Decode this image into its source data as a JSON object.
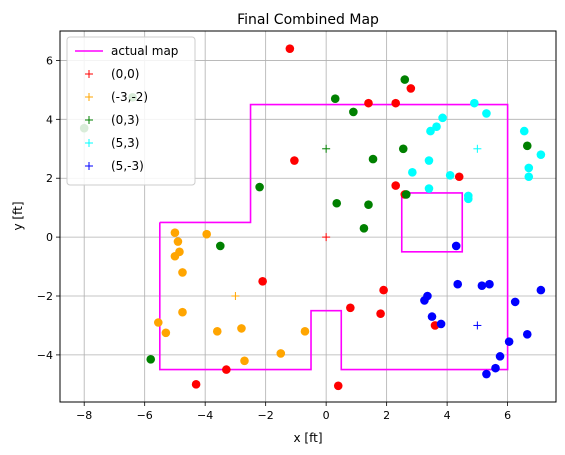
{
  "chart_data": {
    "type": "scatter",
    "title": "Final Combined Map",
    "xlabel": "x [ft]",
    "ylabel": "y [ft]",
    "xlim": [
      -8.8,
      7.6
    ],
    "ylim": [
      -5.6,
      7.0
    ],
    "xticks": [
      -8,
      -6,
      -4,
      -2,
      0,
      2,
      4,
      6
    ],
    "yticks": [
      -4,
      -2,
      0,
      2,
      4,
      6
    ],
    "grid": true,
    "legend_position": "top-left",
    "map": {
      "name": "actual map",
      "color": "#ff00ff",
      "outer": [
        [
          -5.5,
          0.5
        ],
        [
          -2.5,
          0.5
        ],
        [
          -2.5,
          4.5
        ],
        [
          6,
          4.5
        ],
        [
          6,
          -4.5
        ],
        [
          0.5,
          -4.5
        ],
        [
          0.5,
          -2.5
        ],
        [
          -0.5,
          -2.5
        ],
        [
          -0.5,
          -4.5
        ],
        [
          -5.5,
          -4.5
        ],
        [
          -5.5,
          0.5
        ]
      ],
      "inner": [
        [
          2.5,
          1.5
        ],
        [
          4.5,
          1.5
        ],
        [
          4.5,
          -0.5
        ],
        [
          2.5,
          -0.5
        ],
        [
          2.5,
          1.5
        ]
      ]
    },
    "series": [
      {
        "name": "(0,0)",
        "color": "#ff0000",
        "origin": [
          0,
          0
        ],
        "points": [
          [
            -1.2,
            6.4
          ],
          [
            1.4,
            4.55
          ],
          [
            2.3,
            4.55
          ],
          [
            2.8,
            5.05
          ],
          [
            -1.05,
            2.6
          ],
          [
            2.3,
            1.75
          ],
          [
            2.6,
            1.45
          ],
          [
            4.4,
            2.05
          ],
          [
            -2.1,
            -1.5
          ],
          [
            1.9,
            -1.8
          ],
          [
            0.8,
            -2.4
          ],
          [
            1.8,
            -2.6
          ],
          [
            3.6,
            -3.0
          ],
          [
            -3.3,
            -4.5
          ],
          [
            -4.3,
            -5.0
          ],
          [
            0.4,
            -5.05
          ]
        ]
      },
      {
        "name": "(-3,-2)",
        "color": "#ffa500",
        "origin": [
          -3,
          -2
        ],
        "points": [
          [
            -5.0,
            0.15
          ],
          [
            -3.95,
            0.1
          ],
          [
            -4.9,
            -0.15
          ],
          [
            -4.85,
            -0.5
          ],
          [
            -5.0,
            -0.65
          ],
          [
            -4.75,
            -1.2
          ],
          [
            -4.75,
            -2.55
          ],
          [
            -5.55,
            -2.9
          ],
          [
            -5.3,
            -3.25
          ],
          [
            -3.6,
            -3.2
          ],
          [
            -2.8,
            -3.1
          ],
          [
            -0.7,
            -3.2
          ],
          [
            -1.5,
            -3.95
          ],
          [
            -2.7,
            -4.2
          ]
        ]
      },
      {
        "name": "(0,3)",
        "color": "#008000",
        "origin": [
          0,
          3
        ],
        "points": [
          [
            -6.4,
            4.75
          ],
          [
            -8.0,
            3.7
          ],
          [
            2.6,
            5.35
          ],
          [
            0.3,
            4.7
          ],
          [
            0.9,
            4.25
          ],
          [
            2.55,
            3.0
          ],
          [
            6.65,
            3.1
          ],
          [
            1.55,
            2.65
          ],
          [
            -2.2,
            1.7
          ],
          [
            0.35,
            1.15
          ],
          [
            1.4,
            1.1
          ],
          [
            2.65,
            1.45
          ],
          [
            1.25,
            0.3
          ],
          [
            -3.5,
            -0.3
          ],
          [
            -5.8,
            -4.15
          ]
        ]
      },
      {
        "name": "(5,3)",
        "color": "#00ffff",
        "origin": [
          5,
          3
        ],
        "points": [
          [
            4.9,
            4.55
          ],
          [
            5.3,
            4.2
          ],
          [
            3.85,
            4.05
          ],
          [
            3.65,
            3.75
          ],
          [
            3.45,
            3.6
          ],
          [
            6.55,
            3.6
          ],
          [
            7.1,
            2.8
          ],
          [
            3.4,
            2.6
          ],
          [
            6.7,
            2.35
          ],
          [
            2.85,
            2.2
          ],
          [
            4.1,
            2.1
          ],
          [
            6.7,
            2.05
          ],
          [
            3.4,
            1.65
          ],
          [
            4.7,
            1.4
          ],
          [
            4.7,
            1.3
          ]
        ]
      },
      {
        "name": "(5,-3)",
        "color": "#0000ff",
        "origin": [
          5,
          -3
        ],
        "points": [
          [
            4.3,
            -0.3
          ],
          [
            4.35,
            -1.6
          ],
          [
            5.15,
            -1.65
          ],
          [
            5.4,
            -1.6
          ],
          [
            7.1,
            -1.8
          ],
          [
            3.35,
            -2.0
          ],
          [
            3.25,
            -2.15
          ],
          [
            6.25,
            -2.2
          ],
          [
            3.5,
            -2.7
          ],
          [
            3.8,
            -2.95
          ],
          [
            6.65,
            -3.3
          ],
          [
            6.05,
            -3.55
          ],
          [
            5.75,
            -4.05
          ],
          [
            5.6,
            -4.45
          ],
          [
            5.3,
            -4.65
          ]
        ]
      }
    ]
  }
}
